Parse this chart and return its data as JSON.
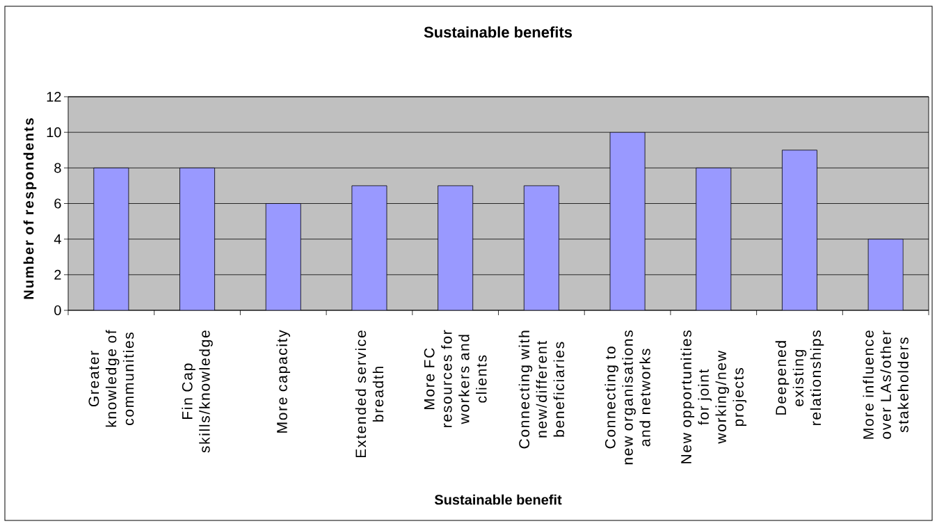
{
  "chart_data": {
    "type": "bar",
    "title": "Sustainable benefits",
    "xlabel": "Sustainable benefit",
    "ylabel": "Number of respondents",
    "categories": [
      "Greater knowledge of communities",
      "Fin Cap skills/knowledge",
      "More capacity",
      "Extended service breadth",
      "More FC resources for workers and clients",
      "Connecting with new/different beneficiaries",
      "Connecting to new organisations and networks",
      "New opportunities for joint working/new projects",
      "Deepened existing relationships",
      "More influence over LAs/other stakeholders"
    ],
    "values": [
      8,
      8,
      6,
      7,
      7,
      7,
      10,
      8,
      9,
      4
    ],
    "color": "#9999ff",
    "ylim": [
      0,
      12
    ],
    "yticks": [
      0,
      2,
      4,
      6,
      8,
      10,
      12
    ],
    "grid": "y"
  }
}
